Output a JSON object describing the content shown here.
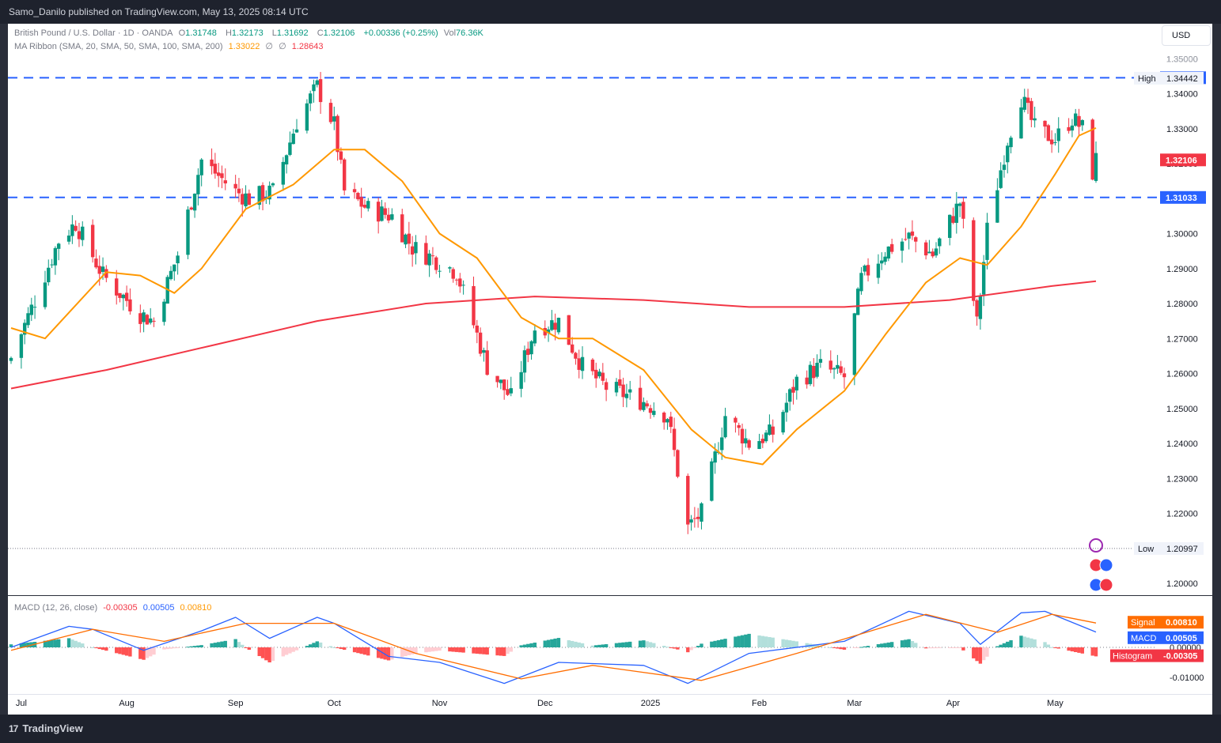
{
  "header": {
    "publish_line": "Samo_Danilo published on TradingView.com, May 13, 2025 08:14 UTC"
  },
  "footer": {
    "brand": "TradingView",
    "logo_glyph": "17"
  },
  "currency": "USD",
  "legend": {
    "symbol": "British Pound / U.S. Dollar · 1D · OANDA",
    "o_label": "O",
    "o": "1.31748",
    "h_label": "H",
    "h": "1.32173",
    "l_label": "L",
    "l": "1.31692",
    "c_label": "C",
    "c": "1.32106",
    "change": "+0.00336 (+0.25%)",
    "vol_label": "Vol",
    "vol": "76.36K",
    "ma_label": "MA Ribbon (SMA, 20, SMA, 50, SMA, 100, SMA, 200)",
    "ma20": "1.33022",
    "ma50": "∅",
    "ma100": "∅",
    "ma200": "1.28643",
    "macd_label": "MACD (12, 26, close)",
    "macd_hist": "-0.00305",
    "macd_macd": "0.00505",
    "macd_signal": "0.00810"
  },
  "colors": {
    "up": "#089981",
    "down": "#f23645",
    "sma20": "#ff9800",
    "sma200": "#f23645",
    "level": "#2962ff",
    "macd": "#2962ff",
    "signal": "#ff6d00",
    "hist_up_strong": "#26a69a",
    "hist_up_weak": "#b2dfdb",
    "hist_dn_strong": "#ff5252",
    "hist_dn_weak": "#ffcdd2"
  },
  "chart_data": {
    "type": "candlestick",
    "title": "British Pound / U.S. Dollar · 1D · OANDA",
    "x_labels": [
      "Jul",
      "Aug",
      "Sep",
      "Oct",
      "Nov",
      "Dec",
      "2025",
      "Feb",
      "Mar",
      "Apr",
      "May"
    ],
    "y_ticks": [
      "1.20000",
      "1.21000",
      "1.22000",
      "1.23000",
      "1.24000",
      "1.25000",
      "1.26000",
      "1.27000",
      "1.28000",
      "1.29000",
      "1.30000",
      "1.31000",
      "1.32000",
      "1.33000",
      "1.34000",
      "1.35000"
    ],
    "ylim": [
      1.197,
      1.358
    ],
    "high": {
      "label": "High",
      "value": 1.34442
    },
    "low": {
      "label": "Low",
      "value": 1.20997
    },
    "horizontal_levels": [
      {
        "value": 1.34456,
        "label": "1.34456"
      },
      {
        "value": 1.31033,
        "label": "1.31033"
      }
    ],
    "last_price": {
      "value": 1.32106,
      "label": "1.32106"
    },
    "close_path": [
      {
        "date": "2024-06-28",
        "close": 1.2645
      },
      {
        "date": "2024-07-05",
        "close": 1.281
      },
      {
        "date": "2024-07-12",
        "close": 1.298
      },
      {
        "date": "2024-07-17",
        "close": 1.303
      },
      {
        "date": "2024-07-25",
        "close": 1.288
      },
      {
        "date": "2024-08-05",
        "close": 1.277
      },
      {
        "date": "2024-08-09",
        "close": 1.275
      },
      {
        "date": "2024-08-16",
        "close": 1.294
      },
      {
        "date": "2024-08-23",
        "close": 1.321
      },
      {
        "date": "2024-09-02",
        "close": 1.312
      },
      {
        "date": "2024-09-06",
        "close": 1.31
      },
      {
        "date": "2024-09-13",
        "close": 1.312
      },
      {
        "date": "2024-09-20",
        "close": 1.332
      },
      {
        "date": "2024-09-26",
        "close": 1.342
      },
      {
        "date": "2024-10-01",
        "close": 1.331
      },
      {
        "date": "2024-10-04",
        "close": 1.312
      },
      {
        "date": "2024-10-11",
        "close": 1.307
      },
      {
        "date": "2024-10-18",
        "close": 1.305
      },
      {
        "date": "2024-10-24",
        "close": 1.296
      },
      {
        "date": "2024-11-01",
        "close": 1.292
      },
      {
        "date": "2024-11-06",
        "close": 1.289
      },
      {
        "date": "2024-11-15",
        "close": 1.262
      },
      {
        "date": "2024-11-22",
        "close": 1.253
      },
      {
        "date": "2024-11-29",
        "close": 1.273
      },
      {
        "date": "2024-12-06",
        "close": 1.275
      },
      {
        "date": "2024-12-13",
        "close": 1.262
      },
      {
        "date": "2024-12-20",
        "close": 1.256
      },
      {
        "date": "2024-12-31",
        "close": 1.252
      },
      {
        "date": "2025-01-07",
        "close": 1.248
      },
      {
        "date": "2025-01-13",
        "close": 1.216
      },
      {
        "date": "2025-01-17",
        "close": 1.22
      },
      {
        "date": "2025-01-24",
        "close": 1.248
      },
      {
        "date": "2025-01-31",
        "close": 1.24
      },
      {
        "date": "2025-02-07",
        "close": 1.243
      },
      {
        "date": "2025-02-14",
        "close": 1.258
      },
      {
        "date": "2025-02-21",
        "close": 1.262
      },
      {
        "date": "2025-02-28",
        "close": 1.259
      },
      {
        "date": "2025-03-05",
        "close": 1.287
      },
      {
        "date": "2025-03-12",
        "close": 1.295
      },
      {
        "date": "2025-03-19",
        "close": 1.299
      },
      {
        "date": "2025-03-26",
        "close": 1.294
      },
      {
        "date": "2025-04-03",
        "close": 1.309
      },
      {
        "date": "2025-04-08",
        "close": 1.274
      },
      {
        "date": "2025-04-11",
        "close": 1.301
      },
      {
        "date": "2025-04-17",
        "close": 1.327
      },
      {
        "date": "2025-04-21",
        "close": 1.339
      },
      {
        "date": "2025-04-25",
        "close": 1.33
      },
      {
        "date": "2025-05-01",
        "close": 1.327
      },
      {
        "date": "2025-05-06",
        "close": 1.333
      },
      {
        "date": "2025-05-09",
        "close": 1.33
      },
      {
        "date": "2025-05-12",
        "close": 1.3175
      },
      {
        "date": "2025-05-13",
        "close": 1.3211
      }
    ],
    "sma20": [
      {
        "date": "2024-06-28",
        "value": 1.273
      },
      {
        "date": "2024-07-08",
        "value": 1.27
      },
      {
        "date": "2024-07-26",
        "value": 1.289
      },
      {
        "date": "2024-08-05",
        "value": 1.288
      },
      {
        "date": "2024-08-15",
        "value": 1.283
      },
      {
        "date": "2024-08-23",
        "value": 1.29
      },
      {
        "date": "2024-09-05",
        "value": 1.307
      },
      {
        "date": "2024-09-19",
        "value": 1.314
      },
      {
        "date": "2024-10-01",
        "value": 1.324
      },
      {
        "date": "2024-10-10",
        "value": 1.324
      },
      {
        "date": "2024-10-21",
        "value": 1.315
      },
      {
        "date": "2024-11-01",
        "value": 1.3
      },
      {
        "date": "2024-11-12",
        "value": 1.293
      },
      {
        "date": "2024-11-25",
        "value": 1.276
      },
      {
        "date": "2024-12-06",
        "value": 1.27
      },
      {
        "date": "2024-12-16",
        "value": 1.27
      },
      {
        "date": "2024-12-31",
        "value": 1.261
      },
      {
        "date": "2025-01-14",
        "value": 1.244
      },
      {
        "date": "2025-01-24",
        "value": 1.236
      },
      {
        "date": "2025-02-04",
        "value": 1.234
      },
      {
        "date": "2025-02-14",
        "value": 1.244
      },
      {
        "date": "2025-02-28",
        "value": 1.255
      },
      {
        "date": "2025-03-12",
        "value": 1.271
      },
      {
        "date": "2025-03-24",
        "value": 1.286
      },
      {
        "date": "2025-04-03",
        "value": 1.293
      },
      {
        "date": "2025-04-11",
        "value": 1.291
      },
      {
        "date": "2025-04-21",
        "value": 1.302
      },
      {
        "date": "2025-05-01",
        "value": 1.317
      },
      {
        "date": "2025-05-08",
        "value": 1.328
      },
      {
        "date": "2025-05-13",
        "value": 1.3302
      }
    ],
    "sma200": [
      {
        "date": "2024-06-28",
        "value": 1.2557
      },
      {
        "date": "2024-07-26",
        "value": 1.261
      },
      {
        "date": "2024-08-26",
        "value": 1.268
      },
      {
        "date": "2024-09-26",
        "value": 1.275
      },
      {
        "date": "2024-10-28",
        "value": 1.28
      },
      {
        "date": "2024-11-29",
        "value": 1.282
      },
      {
        "date": "2024-12-31",
        "value": 1.281
      },
      {
        "date": "2025-01-31",
        "value": 1.279
      },
      {
        "date": "2025-02-28",
        "value": 1.279
      },
      {
        "date": "2025-03-31",
        "value": 1.281
      },
      {
        "date": "2025-04-30",
        "value": 1.285
      },
      {
        "date": "2025-05-13",
        "value": 1.2864
      }
    ],
    "macd": {
      "title": "MACD (12, 26, close)",
      "ylim": [
        -0.0135,
        0.0135
      ],
      "y_ticks": [
        "0.00000",
        "-0.01000"
      ],
      "macd_line": [
        {
          "date": "2024-06-28",
          "value": 0.0
        },
        {
          "date": "2024-07-15",
          "value": 0.007
        },
        {
          "date": "2024-07-22",
          "value": 0.006
        },
        {
          "date": "2024-08-06",
          "value": -0.001
        },
        {
          "date": "2024-08-23",
          "value": 0.0055
        },
        {
          "date": "2024-09-02",
          "value": 0.01
        },
        {
          "date": "2024-09-12",
          "value": 0.003
        },
        {
          "date": "2024-09-26",
          "value": 0.01
        },
        {
          "date": "2024-10-01",
          "value": 0.008
        },
        {
          "date": "2024-10-17",
          "value": -0.003
        },
        {
          "date": "2024-11-01",
          "value": -0.005
        },
        {
          "date": "2024-11-20",
          "value": -0.012
        },
        {
          "date": "2024-12-06",
          "value": -0.005
        },
        {
          "date": "2024-12-31",
          "value": -0.006
        },
        {
          "date": "2025-01-13",
          "value": -0.012
        },
        {
          "date": "2025-01-31",
          "value": -0.002
        },
        {
          "date": "2025-02-28",
          "value": 0.002
        },
        {
          "date": "2025-03-19",
          "value": 0.012
        },
        {
          "date": "2025-04-03",
          "value": 0.008
        },
        {
          "date": "2025-04-09",
          "value": 0.001
        },
        {
          "date": "2025-04-21",
          "value": 0.0115
        },
        {
          "date": "2025-04-28",
          "value": 0.012
        },
        {
          "date": "2025-05-13",
          "value": 0.0051
        }
      ],
      "signal_line": [
        {
          "date": "2024-06-28",
          "value": -0.001
        },
        {
          "date": "2024-07-22",
          "value": 0.006
        },
        {
          "date": "2024-08-12",
          "value": 0.002
        },
        {
          "date": "2024-09-05",
          "value": 0.008
        },
        {
          "date": "2024-10-01",
          "value": 0.008
        },
        {
          "date": "2024-10-25",
          "value": -0.002
        },
        {
          "date": "2024-11-25",
          "value": -0.0105
        },
        {
          "date": "2024-12-16",
          "value": -0.006
        },
        {
          "date": "2025-01-17",
          "value": -0.011
        },
        {
          "date": "2025-02-14",
          "value": -0.002
        },
        {
          "date": "2025-03-24",
          "value": 0.011
        },
        {
          "date": "2025-04-14",
          "value": 0.005
        },
        {
          "date": "2025-04-30",
          "value": 0.011
        },
        {
          "date": "2025-05-13",
          "value": 0.0081
        }
      ],
      "histogram_last": -0.00305
    }
  }
}
